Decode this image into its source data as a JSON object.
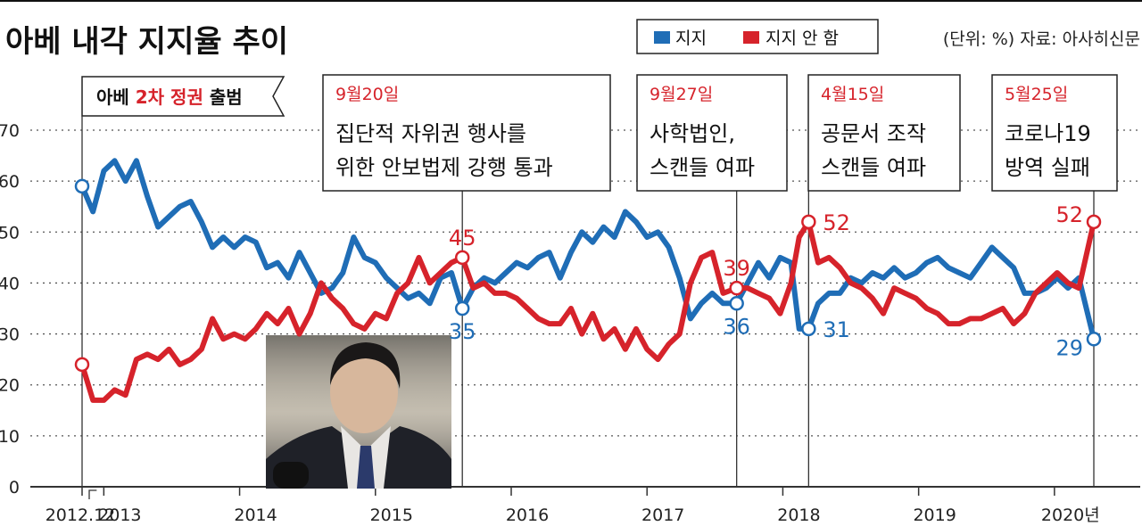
{
  "header": {
    "title": "아베 내각 지지율 추이",
    "unit_source": "(단위: %) 자료: 아사히신문"
  },
  "legend": {
    "support": "지지",
    "oppose": "지지 안 함"
  },
  "colors": {
    "support": "#1f6db6",
    "oppose": "#d6232b",
    "axis": "#333333",
    "grid": "#555555"
  },
  "start_label": {
    "part1": "아베 ",
    "part2": "2차 정권",
    "part3": " 출범"
  },
  "events": [
    {
      "date": "9월20일",
      "lines": [
        "집단적 자위권 행사를",
        "위한 안보법제 강행 통과"
      ],
      "t": 2015.72
    },
    {
      "date": "9월27일",
      "lines": [
        "사학법인,",
        "스캔들 여파"
      ],
      "t": 2017.74
    },
    {
      "date": "4월15일",
      "lines": [
        "공문서 조작",
        "스캔들 여파"
      ],
      "t": 2018.27
    },
    {
      "date": "5월25일",
      "lines": [
        "코로나19",
        "방역 실패"
      ],
      "t": 2020.37
    }
  ],
  "photo": {
    "description_icon": "person-photo"
  },
  "chart_data": {
    "type": "line",
    "title": "아베 내각 지지율 추이",
    "ylabel": "",
    "xlabel": "",
    "ylim": [
      0,
      70
    ],
    "yticks": [
      0,
      10,
      20,
      30,
      40,
      50,
      60,
      70
    ],
    "xlim": [
      2012.92,
      2020.63
    ],
    "x_tick_labels": [
      {
        "label": "2012.12",
        "t": 2012.92
      },
      {
        "label": "2013",
        "t": 2013.08
      },
      {
        "label": "2014",
        "t": 2014.08
      },
      {
        "label": "2015",
        "t": 2015.08
      },
      {
        "label": "2016",
        "t": 2016.08
      },
      {
        "label": "2017",
        "t": 2017.08
      },
      {
        "label": "2018",
        "t": 2018.08
      },
      {
        "label": "2019",
        "t": 2019.08
      },
      {
        "label": "2020년",
        "t": 2020.08
      }
    ],
    "grid": true,
    "legend_position": "top-right",
    "series": [
      {
        "name": "지지",
        "t": [
          2012.92,
          2013.0,
          2013.08,
          2013.16,
          2013.24,
          2013.32,
          2013.4,
          2013.48,
          2013.56,
          2013.64,
          2013.72,
          2013.8,
          2013.88,
          2013.96,
          2014.04,
          2014.12,
          2014.2,
          2014.28,
          2014.36,
          2014.44,
          2014.52,
          2014.6,
          2014.68,
          2014.76,
          2014.84,
          2014.92,
          2015.0,
          2015.08,
          2015.16,
          2015.24,
          2015.32,
          2015.4,
          2015.48,
          2015.56,
          2015.64,
          2015.72,
          2015.8,
          2015.88,
          2015.96,
          2016.04,
          2016.12,
          2016.2,
          2016.28,
          2016.36,
          2016.44,
          2016.52,
          2016.6,
          2016.68,
          2016.76,
          2016.84,
          2016.92,
          2017.0,
          2017.08,
          2017.16,
          2017.24,
          2017.32,
          2017.4,
          2017.48,
          2017.56,
          2017.64,
          2017.74,
          2017.82,
          2017.9,
          2017.98,
          2018.06,
          2018.14,
          2018.2,
          2018.27,
          2018.34,
          2018.42,
          2018.5,
          2018.58,
          2018.66,
          2018.74,
          2018.82,
          2018.9,
          2018.98,
          2019.06,
          2019.14,
          2019.22,
          2019.3,
          2019.38,
          2019.46,
          2019.54,
          2019.62,
          2019.7,
          2019.78,
          2019.86,
          2019.94,
          2020.02,
          2020.1,
          2020.18,
          2020.26,
          2020.37
        ],
        "values": [
          59,
          54,
          62,
          64,
          60,
          64,
          57,
          51,
          53,
          55,
          56,
          52,
          47,
          49,
          47,
          49,
          48,
          43,
          44,
          41,
          46,
          42,
          38,
          39,
          42,
          49,
          45,
          44,
          41,
          39,
          37,
          38,
          36,
          41,
          42,
          35,
          39,
          41,
          40,
          42,
          44,
          43,
          45,
          46,
          41,
          46,
          50,
          48,
          51,
          49,
          54,
          52,
          49,
          50,
          47,
          41,
          33,
          36,
          38,
          36,
          36,
          40,
          44,
          41,
          45,
          44,
          31,
          31,
          36,
          38,
          38,
          41,
          40,
          42,
          41,
          43,
          41,
          42,
          44,
          45,
          43,
          42,
          41,
          44,
          47,
          45,
          43,
          38,
          38,
          39,
          41,
          39,
          41,
          29
        ]
      },
      {
        "name": "지지 안 함",
        "t": [
          2012.92,
          2013.0,
          2013.08,
          2013.16,
          2013.24,
          2013.32,
          2013.4,
          2013.48,
          2013.56,
          2013.64,
          2013.72,
          2013.8,
          2013.88,
          2013.96,
          2014.04,
          2014.12,
          2014.2,
          2014.28,
          2014.36,
          2014.44,
          2014.52,
          2014.6,
          2014.68,
          2014.76,
          2014.84,
          2014.92,
          2015.0,
          2015.08,
          2015.16,
          2015.24,
          2015.32,
          2015.4,
          2015.48,
          2015.56,
          2015.64,
          2015.72,
          2015.8,
          2015.88,
          2015.96,
          2016.04,
          2016.12,
          2016.2,
          2016.28,
          2016.36,
          2016.44,
          2016.52,
          2016.6,
          2016.68,
          2016.76,
          2016.84,
          2016.92,
          2017.0,
          2017.08,
          2017.16,
          2017.24,
          2017.32,
          2017.4,
          2017.48,
          2017.56,
          2017.64,
          2017.74,
          2017.82,
          2017.9,
          2017.98,
          2018.06,
          2018.14,
          2018.2,
          2018.27,
          2018.34,
          2018.42,
          2018.5,
          2018.58,
          2018.66,
          2018.74,
          2018.82,
          2018.9,
          2018.98,
          2019.06,
          2019.14,
          2019.22,
          2019.3,
          2019.38,
          2019.46,
          2019.54,
          2019.62,
          2019.7,
          2019.78,
          2019.86,
          2019.94,
          2020.02,
          2020.1,
          2020.18,
          2020.26,
          2020.37
        ],
        "values": [
          24,
          17,
          17,
          19,
          18,
          25,
          26,
          25,
          27,
          24,
          25,
          27,
          33,
          29,
          30,
          29,
          31,
          34,
          32,
          35,
          30,
          34,
          40,
          37,
          35,
          32,
          31,
          34,
          33,
          38,
          40,
          45,
          40,
          42,
          44,
          45,
          39,
          40,
          38,
          38,
          37,
          35,
          33,
          32,
          32,
          35,
          30,
          34,
          29,
          31,
          27,
          31,
          27,
          25,
          28,
          30,
          40,
          45,
          46,
          38,
          39,
          39,
          38,
          37,
          34,
          40,
          49,
          52,
          44,
          45,
          43,
          40,
          39,
          37,
          34,
          39,
          38,
          37,
          35,
          34,
          32,
          32,
          33,
          33,
          34,
          35,
          32,
          34,
          38,
          40,
          42,
          40,
          39,
          52
        ]
      }
    ],
    "data_labels": [
      {
        "series": "지지 안 함",
        "t": 2015.72,
        "value": 45,
        "text": "45"
      },
      {
        "series": "지지",
        "t": 2015.72,
        "value": 35,
        "text": "35"
      },
      {
        "series": "지지 안 함",
        "t": 2017.74,
        "value": 39,
        "text": "39"
      },
      {
        "series": "지지",
        "t": 2017.74,
        "value": 36,
        "text": "36"
      },
      {
        "series": "지지 안 함",
        "t": 2018.27,
        "value": 52,
        "text": "52"
      },
      {
        "series": "지지",
        "t": 2018.27,
        "value": 31,
        "text": "31"
      },
      {
        "series": "지지 안 함",
        "t": 2020.37,
        "value": 52,
        "text": "52"
      },
      {
        "series": "지지",
        "t": 2020.37,
        "value": 29,
        "text": "29"
      }
    ],
    "start_markers": [
      {
        "series": "지지",
        "t": 2012.92,
        "value": 59
      },
      {
        "series": "지지 안 함",
        "t": 2012.92,
        "value": 24
      }
    ]
  }
}
